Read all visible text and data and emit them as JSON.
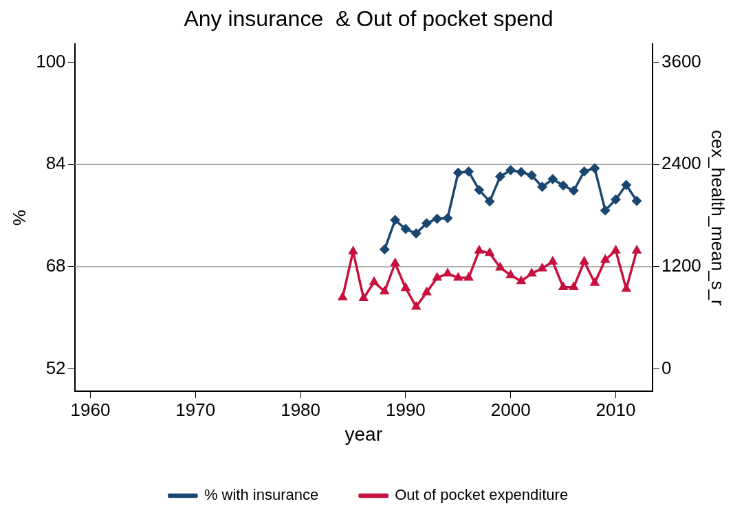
{
  "chart_data": {
    "type": "line",
    "title": "Any insurance  & Out of pocket spend",
    "xlabel": "year",
    "ylabel": "%",
    "y2label": "cex_health_mean_s_r",
    "xlim": [
      1958.5,
      2013.5
    ],
    "xticks": [
      1960,
      1970,
      1980,
      1990,
      2000,
      2010
    ],
    "ylim": [
      48.5,
      102.8
    ],
    "yticks": [
      52,
      68,
      84,
      100
    ],
    "y2lim": [
      -262,
      3810
    ],
    "y2ticks": [
      0,
      1200,
      2400,
      3600
    ],
    "ref_lines": [
      {
        "axis": "y",
        "value": 84,
        "color": "#999999"
      },
      {
        "axis": "y",
        "value": 68,
        "color": "#999999"
      }
    ],
    "legend": "bottom",
    "line_style": "solid",
    "series": [
      {
        "name": "% with insurance",
        "color": "#1a476f",
        "marker": "diamond",
        "x": [
          1988,
          1989,
          1990,
          1991,
          1992,
          1993,
          1994,
          1995,
          1996,
          1997,
          1998,
          1999,
          2000,
          2001,
          2002,
          2003,
          2004,
          2005,
          2006,
          2007,
          2008,
          2009,
          2010,
          2011,
          2012
        ],
        "values": [
          70.7,
          75.3,
          73.9,
          73.2,
          74.8,
          75.5,
          75.6,
          82.7,
          82.9,
          80.0,
          78.2,
          82.1,
          83.1,
          82.8,
          82.3,
          80.5,
          81.7,
          80.7,
          79.9,
          82.9,
          83.4,
          76.8,
          78.5,
          80.8,
          78.3
        ]
      },
      {
        "name": "Out of pocket expenditure",
        "color": "#c8103e",
        "marker": "triangle",
        "axis": "y2",
        "x": [
          1984,
          1985,
          1986,
          1987,
          1988,
          1989,
          1990,
          1991,
          1992,
          1993,
          1994,
          1995,
          1996,
          1997,
          1998,
          1999,
          2000,
          2001,
          2002,
          2003,
          2004,
          2005,
          2006,
          2007,
          2008,
          2009,
          2010,
          2011,
          2012
        ],
        "values": [
          840,
          1380,
          830,
          1020,
          910,
          1240,
          950,
          730,
          900,
          1070,
          1120,
          1070,
          1070,
          1390,
          1360,
          1190,
          1100,
          1030,
          1120,
          1180,
          1260,
          960,
          960,
          1260,
          1010,
          1280,
          1390,
          940,
          1390
        ]
      }
    ]
  }
}
